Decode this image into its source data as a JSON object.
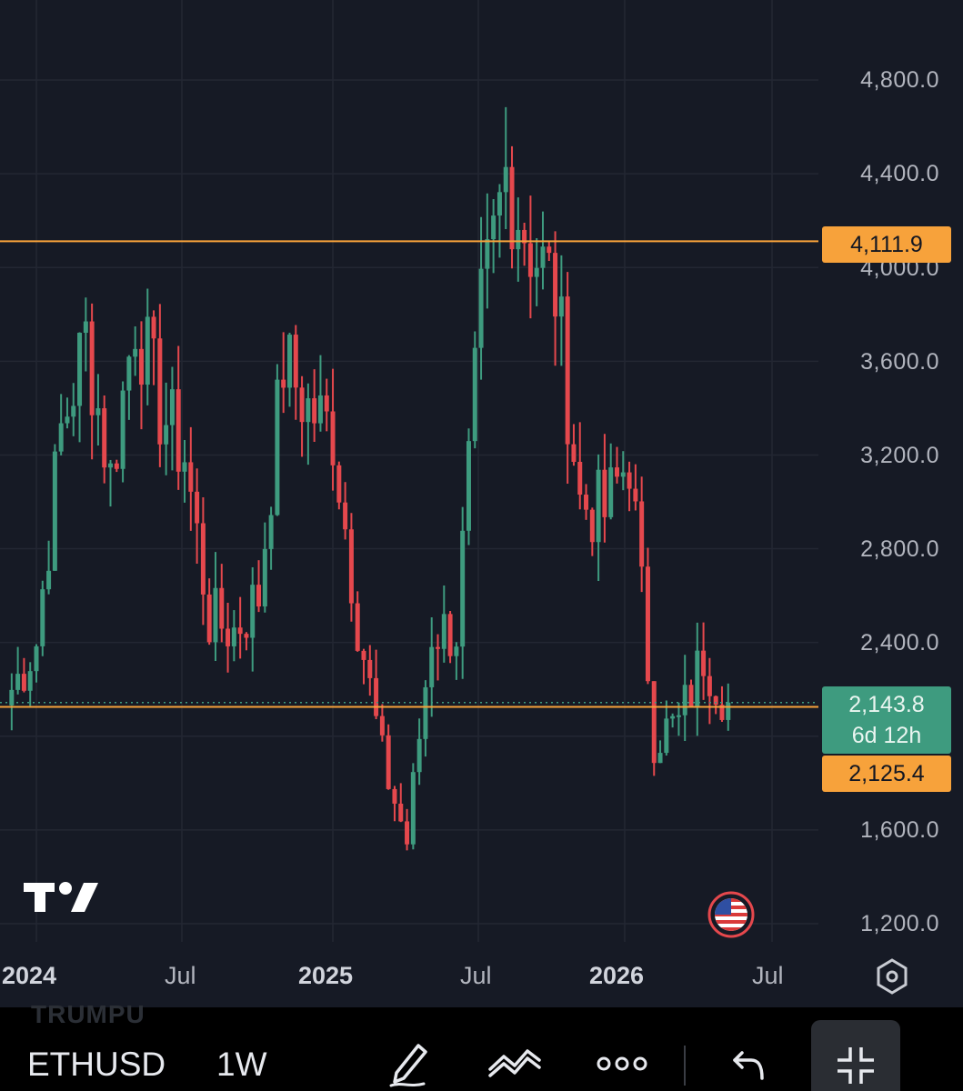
{
  "chart": {
    "symbol": "ETHUSD",
    "interval": "1W",
    "ghost_symbol": "TRUMPU",
    "y_axis": {
      "ticks": [
        "4,800.0",
        "4,400.0",
        "4,000.0",
        "3,600.0",
        "3,200.0",
        "2,800.0",
        "2,400.0",
        "1,600.0",
        "1,200.0"
      ]
    },
    "x_axis": {
      "ticks": [
        {
          "label": "2024",
          "bold": true
        },
        {
          "label": "Jul",
          "bold": false
        },
        {
          "label": "2025",
          "bold": true
        },
        {
          "label": "Jul",
          "bold": false
        },
        {
          "label": "2026",
          "bold": true
        },
        {
          "label": "Jul",
          "bold": false
        }
      ]
    },
    "price_tags": {
      "upper_line": "4,111.9",
      "current_price": "2,143.8",
      "countdown": "6d 12h",
      "lower_line": "2,125.4"
    },
    "levels": {
      "upper": 4111.9,
      "lower": 2125.4,
      "current": 2143.8
    },
    "colors": {
      "up": "#3e9b7f",
      "down": "#e5484d",
      "level_line": "#f7a23b",
      "background": "#161a25",
      "grid": "#232733"
    }
  },
  "chart_data": {
    "type": "candlestick",
    "title": "ETHUSD",
    "interval": "1W",
    "ylim": [
      1100,
      4980
    ],
    "y_ticks": [
      1200,
      1600,
      2000,
      2400,
      2800,
      3200,
      3600,
      4000,
      4400,
      4800
    ],
    "x_ticks": [
      "2024",
      "Jul",
      "2025",
      "Jul",
      "2026",
      "Jul"
    ],
    "close_path": [
      [
        "2023-12",
        2200
      ],
      [
        "2024-01",
        2400
      ],
      [
        "2024-02",
        3300
      ],
      [
        "2024-03",
        3700
      ],
      [
        "2024-04",
        3100
      ],
      [
        "2024-05",
        3800
      ],
      [
        "2024-06",
        3400
      ],
      [
        "2024-07",
        3200
      ],
      [
        "2024-08",
        2500
      ],
      [
        "2024-09",
        2450
      ],
      [
        "2024-10",
        2600
      ],
      [
        "2024-11",
        3600
      ],
      [
        "2024-12",
        3400
      ],
      [
        "2025-01",
        3300
      ],
      [
        "2025-02",
        2500
      ],
      [
        "2025-03",
        1900
      ],
      [
        "2025-04",
        1550
      ],
      [
        "2025-05",
        2450
      ],
      [
        "2025-06",
        2450
      ],
      [
        "2025-07",
        3800
      ],
      [
        "2025-08",
        4400
      ],
      [
        "2025-09",
        4100
      ],
      [
        "2025-10",
        3900
      ],
      [
        "2025-11",
        3000
      ],
      [
        "2025-12",
        2950
      ],
      [
        "2026-01",
        3200
      ],
      [
        "2026-02",
        2000
      ],
      [
        "2026-03",
        2050
      ],
      [
        "2026-04",
        2350
      ],
      [
        "2026-05",
        2143.8
      ]
    ]
  },
  "toolbar": {
    "icons": [
      "pencil-icon",
      "indicators-icon",
      "more-icon",
      "undo-icon",
      "collapse-icon"
    ]
  }
}
